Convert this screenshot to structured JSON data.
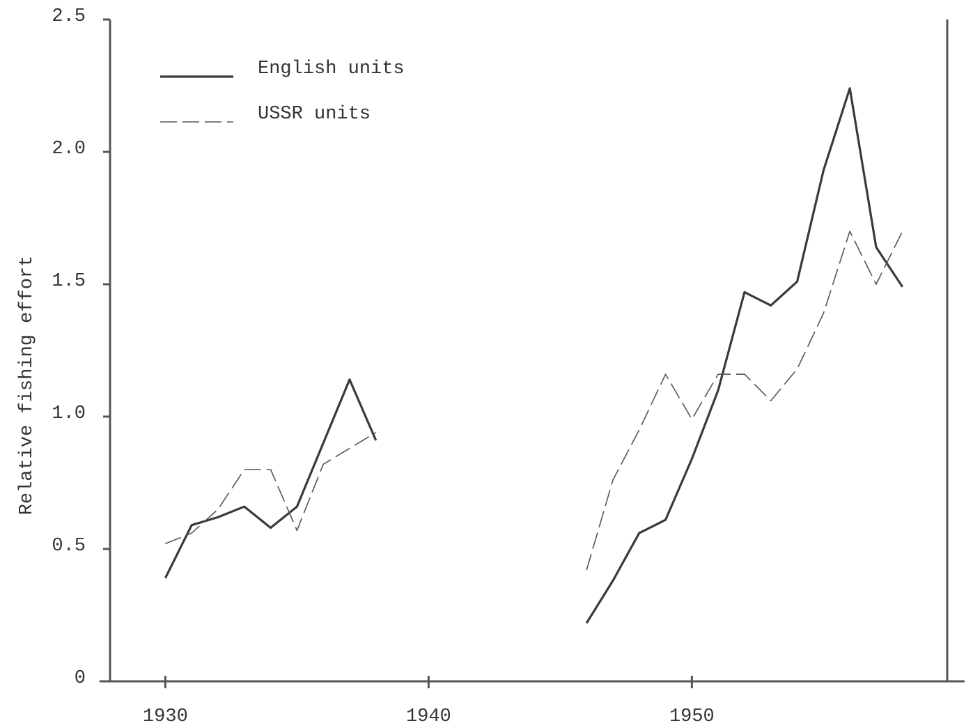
{
  "chart_data": {
    "type": "line",
    "y_label": "Relative fishing effort",
    "x": [
      1930,
      1931,
      1932,
      1933,
      1934,
      1935,
      1936,
      1937,
      1938,
      1939,
      1940,
      1941,
      1942,
      1943,
      1944,
      1945,
      1946,
      1947,
      1948,
      1949,
      1950,
      1951,
      1952,
      1953,
      1954,
      1955,
      1956,
      1957,
      1958
    ],
    "series": [
      {
        "name": "English units",
        "color": "#3a3a3a",
        "style": "solid",
        "values": [
          0.39,
          0.59,
          0.62,
          0.66,
          0.58,
          0.66,
          0.9,
          1.14,
          0.91,
          null,
          null,
          null,
          null,
          null,
          null,
          null,
          0.22,
          0.38,
          0.56,
          0.61,
          0.84,
          1.1,
          1.47,
          1.42,
          1.51,
          1.93,
          2.24,
          1.64,
          1.49
        ]
      },
      {
        "name": "USSR units",
        "color": "#555555",
        "style": "dashed",
        "values": [
          0.52,
          0.56,
          0.65,
          0.8,
          0.8,
          0.57,
          0.82,
          0.88,
          0.94,
          null,
          null,
          null,
          null,
          null,
          null,
          null,
          0.42,
          0.76,
          0.95,
          1.16,
          0.99,
          1.16,
          1.16,
          1.06,
          1.18,
          1.39,
          1.7,
          1.5,
          1.7
        ]
      }
    ],
    "xlim": [
      1927.9,
      1959.7
    ],
    "xticks": [
      1930,
      1940,
      1950
    ],
    "ylim": [
      0,
      2.5
    ],
    "yticks": [
      0,
      0.5,
      {
        "value": 1,
        "label": "1.0"
      },
      1.5,
      {
        "value": 2,
        "label": "2.0"
      },
      2.5
    ],
    "grid": false,
    "legend": "upper left"
  }
}
